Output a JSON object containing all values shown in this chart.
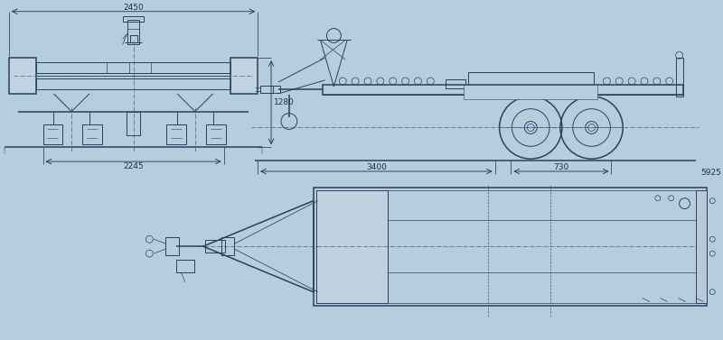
{
  "bg_color": "#b5cede",
  "lc": "#2a3f5f",
  "dc": "#1a2f4f",
  "fig_w": 8.0,
  "fig_h": 3.77,
  "dpi": 100,
  "dim_2450": "2450",
  "dim_1280": "1280",
  "dim_2245": "2245",
  "dim_3400": "3400",
  "dim_730": "730",
  "dim_5925": "5925"
}
